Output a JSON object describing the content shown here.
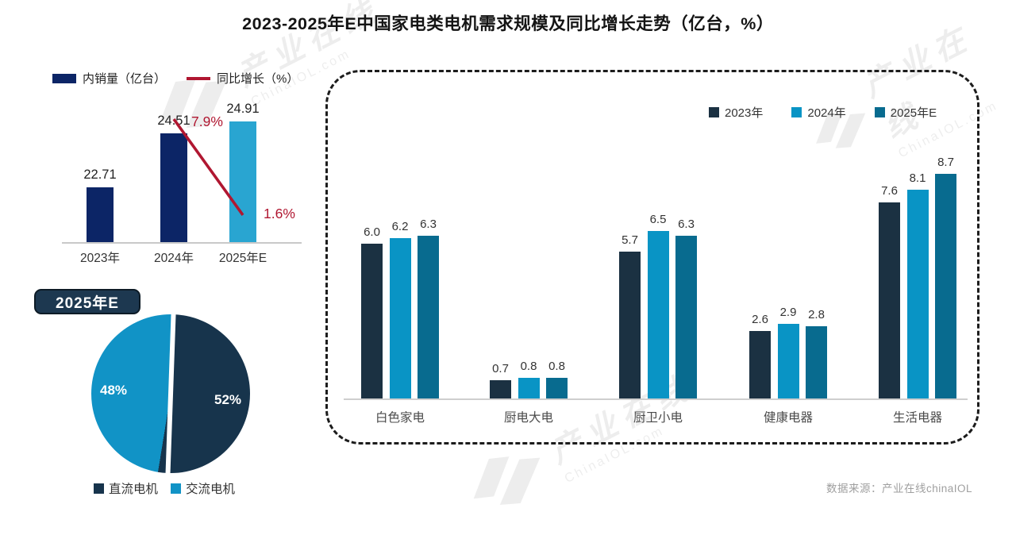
{
  "title": "2023-2025年E中国家电类电机需求规模及同比增长走势（亿台，%）",
  "source": "数据来源：产业在线chinaIOL",
  "watermark": {
    "name": "产业在线",
    "domain": "ChinaIOL.com"
  },
  "colors": {
    "navy": "#0c2566",
    "cyan": "#29a5d1",
    "red": "#b01731",
    "slate": "#1b3142",
    "sky": "#0994c5",
    "teal": "#086b8f",
    "pie_dark": "#17344c",
    "pie_cyan": "#1193c6",
    "axis": "#c9c9c9"
  },
  "chart_data": [
    {
      "type": "bar",
      "id": "sales-trend",
      "title": "",
      "categories": [
        "2023年",
        "2024年",
        "2025年E"
      ],
      "series": [
        {
          "name": "内销量（亿台）",
          "type": "bar",
          "values": [
            22.71,
            24.51,
            24.91
          ],
          "colors_by_point": [
            "navy",
            "navy",
            "cyan"
          ]
        },
        {
          "name": "同比增长（%）",
          "type": "line",
          "values": [
            null,
            7.9,
            1.6
          ],
          "color": "red",
          "labels": [
            "",
            "7.9%",
            "1.6%"
          ]
        }
      ],
      "legend_position": "top",
      "grid": false
    },
    {
      "type": "pie",
      "id": "motor-type-share",
      "badge": "2025年E",
      "slices": [
        {
          "label": "直流电机",
          "value": 52,
          "color": "pie_dark"
        },
        {
          "label": "交流电机",
          "value": 48,
          "color": "pie_cyan"
        }
      ],
      "unit": "%",
      "legend_position": "bottom"
    },
    {
      "type": "bar",
      "id": "category-demand",
      "categories": [
        "白色家电",
        "厨电大电",
        "厨卫小电",
        "健康电器",
        "生活电器"
      ],
      "series": [
        {
          "name": "2023年",
          "values": [
            6.0,
            0.7,
            5.7,
            2.6,
            7.6
          ],
          "color": "slate"
        },
        {
          "name": "2024年",
          "values": [
            6.2,
            0.8,
            6.5,
            2.9,
            8.1
          ],
          "color": "sky"
        },
        {
          "name": "2025年E",
          "values": [
            6.3,
            0.8,
            6.3,
            2.8,
            8.7
          ],
          "color": "teal"
        }
      ],
      "legend_position": "top-right",
      "grid": false
    }
  ]
}
